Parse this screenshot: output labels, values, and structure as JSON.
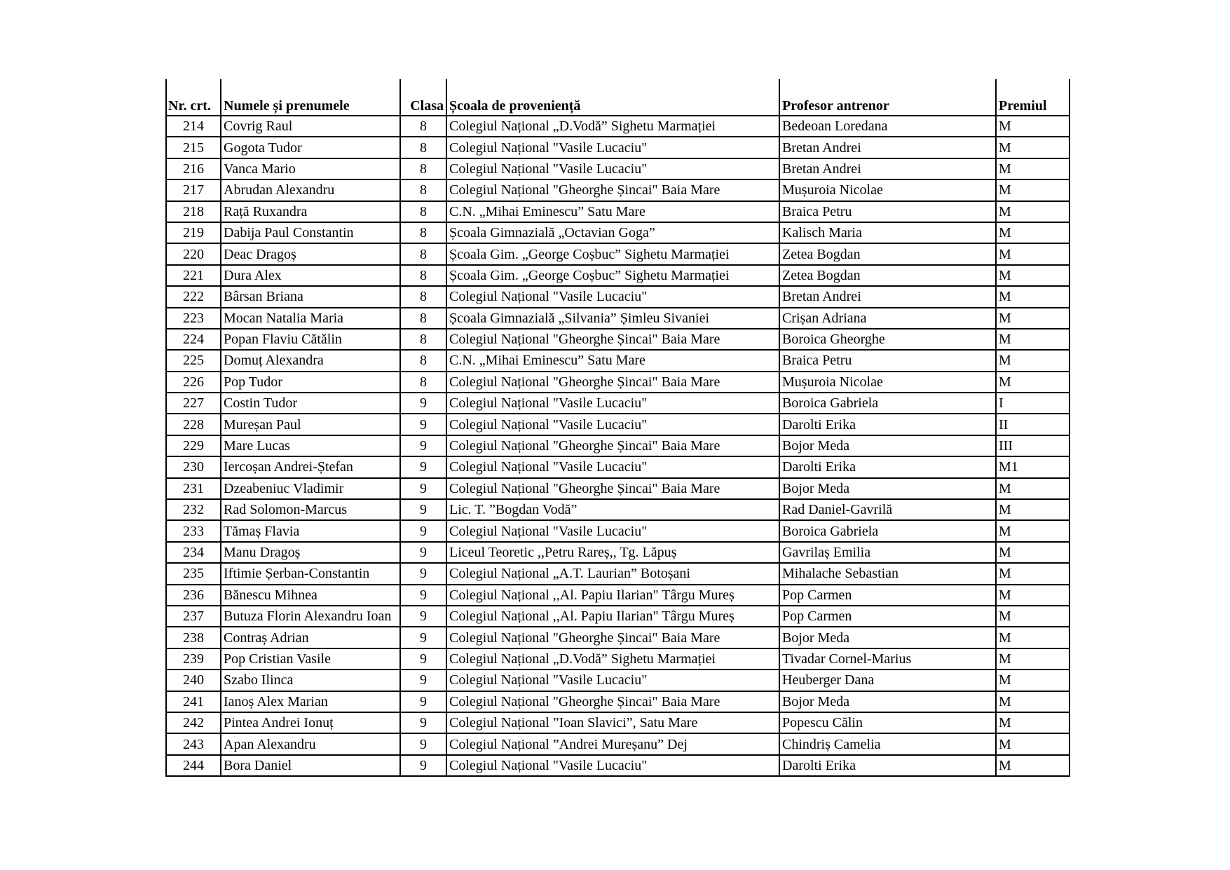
{
  "table": {
    "headers": [
      "Nr. crt.",
      "Numele și prenumele",
      "Clasa",
      "Școala de proveniență",
      "Profesor antrenor",
      "Premiul"
    ],
    "rows": [
      [
        "214",
        "Covrig Raul",
        "8",
        "Colegiul Național „D.Vodă” Sighetu Marmației",
        "Bedeoan Loredana",
        "M"
      ],
      [
        "215",
        "Gogota Tudor",
        "8",
        "Colegiul Național  \"Vasile Lucaciu\"",
        "Bretan Andrei",
        "M"
      ],
      [
        "216",
        "Vanca Mario",
        "8",
        "Colegiul Național  \"Vasile Lucaciu\"",
        "Bretan Andrei",
        "M"
      ],
      [
        "217",
        "Abrudan Alexandru",
        "8",
        "Colegiul Național \"Gheorghe Șincai\" Baia Mare",
        "Mușuroia Nicolae",
        "M"
      ],
      [
        "218",
        "Rață Ruxandra",
        "8",
        "C.N. „Mihai Eminescu” Satu Mare",
        "Braica Petru",
        "M"
      ],
      [
        "219",
        "Dabija Paul Constantin",
        "8",
        "Școala Gimnazială „Octavian Goga”",
        "Kalisch Maria",
        "M"
      ],
      [
        "220",
        "Deac Dragoș",
        "8",
        "Școala Gim. „George Coșbuc” Sighetu Marmației",
        "Zetea Bogdan",
        "M"
      ],
      [
        "221",
        "Dura Alex",
        "8",
        "Școala Gim. „George Coșbuc” Sighetu Marmației",
        "Zetea Bogdan",
        "M"
      ],
      [
        "222",
        "Bârsan Briana",
        "8",
        "Colegiul Național  \"Vasile Lucaciu\"",
        "Bretan Andrei",
        "M"
      ],
      [
        "223",
        "Mocan Natalia Maria",
        "8",
        "Școala Gimnazială „Silvania” Șimleu Sivaniei",
        " Crișan Adriana",
        "M"
      ],
      [
        "224",
        "Popan Flaviu Cătălin",
        "8",
        "Colegiul Național \"Gheorghe Șincai\" Baia Mare",
        "Boroica Gheorghe",
        "M"
      ],
      [
        "225",
        "Domuț Alexandra",
        "8",
        "C.N. „Mihai Eminescu” Satu Mare",
        "Braica Petru",
        "M"
      ],
      [
        "226",
        "Pop Tudor",
        "8",
        "Colegiul Național \"Gheorghe Șincai\" Baia Mare",
        "Mușuroia Nicolae",
        "M"
      ],
      [
        "227",
        "Costin Tudor",
        "9",
        "Colegiul Național  \"Vasile Lucaciu\"",
        "Boroica Gabriela",
        "I"
      ],
      [
        "228",
        "Mureșan Paul",
        "9",
        "Colegiul Național  \"Vasile Lucaciu\"",
        "Darolti Erika",
        "II"
      ],
      [
        "229",
        "Mare Lucas",
        "9",
        "Colegiul Național \"Gheorghe Șincai\" Baia Mare",
        "Bojor Meda",
        "III"
      ],
      [
        "230",
        "Iercoșan Andrei-Ștefan",
        "9",
        "Colegiul Național  \"Vasile Lucaciu\"",
        "Darolti Erika",
        "M1"
      ],
      [
        "231",
        "Dzeabeniuc Vladimir",
        "9",
        "Colegiul Național \"Gheorghe Șincai\" Baia Mare",
        "Bojor Meda",
        "M"
      ],
      [
        "232",
        "Rad Solomon-Marcus",
        "9",
        "Lic. T. ”Bogdan Vodă”",
        "Rad Daniel-Gavrilă",
        "M"
      ],
      [
        "233",
        "Tămaș Flavia",
        "9",
        "Colegiul Național  \"Vasile Lucaciu\"",
        "Boroica Gabriela",
        "M"
      ],
      [
        "234",
        "Manu Dragoș",
        "9",
        "Liceul Teoretic ,,Petru Rareș,, Tg. Lăpuș",
        "Gavrilaș Emilia",
        "M"
      ],
      [
        "235",
        "Iftimie Șerban-Constantin",
        "9",
        "Colegiul Național „A.T. Laurian” Botoșani",
        "Mihalache Sebastian",
        "M"
      ],
      [
        "236",
        "Bănescu Mihnea",
        "9",
        "Colegiul Național ,,Al. Papiu Ilarian\" Târgu Mureș",
        "Pop Carmen",
        "M"
      ],
      [
        "237",
        "Butuza Florin Alexandru Ioan",
        "9",
        "Colegiul Național ,,Al. Papiu Ilarian\" Târgu Mureș",
        "Pop Carmen",
        "M"
      ],
      [
        "238",
        "Contraș Adrian",
        "9",
        "Colegiul Național \"Gheorghe Șincai\" Baia Mare",
        "Bojor Meda",
        "M"
      ],
      [
        "239",
        "Pop  Cristian Vasile",
        "9",
        "Colegiul Național „D.Vodă” Sighetu Marmației",
        "Tivadar Cornel-Marius",
        "M"
      ],
      [
        "240",
        "Szabo Ilinca",
        "9",
        "Colegiul Național  \"Vasile Lucaciu\"",
        "Heuberger Dana",
        "M"
      ],
      [
        "241",
        "Ianoș Alex Marian",
        "9",
        "Colegiul Național \"Gheorghe Șincai\" Baia Mare",
        "Bojor Meda",
        "M"
      ],
      [
        "242",
        "Pintea Andrei Ionuț",
        "9",
        "Colegiul Național ”Ioan Slavici”, Satu Mare",
        "Popescu Călin",
        "M"
      ],
      [
        "243",
        "Apan Alexandru",
        "9",
        "Colegiul Național ”Andrei Mureșanu” Dej",
        "Chindriș Camelia",
        "M"
      ],
      [
        "244",
        "Bora Daniel",
        "9",
        "Colegiul Național  \"Vasile Lucaciu\"",
        "Darolti Erika",
        "M"
      ]
    ]
  }
}
